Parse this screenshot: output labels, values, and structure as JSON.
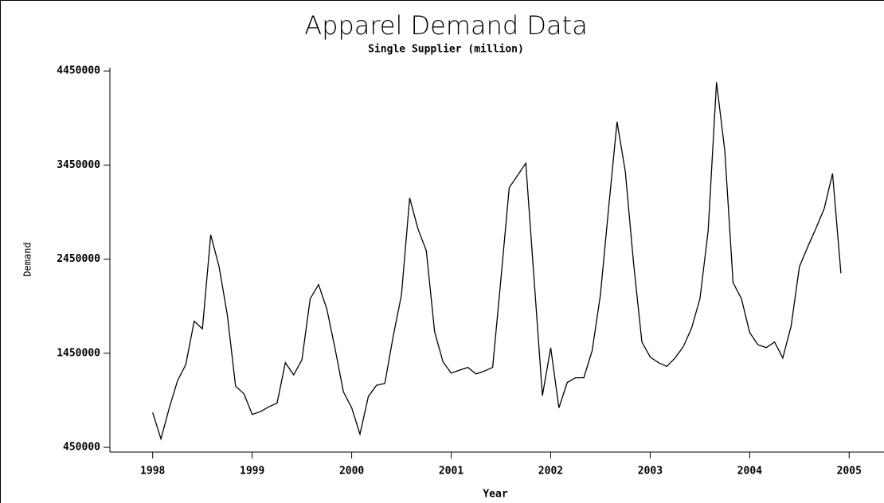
{
  "chart_data": {
    "type": "line",
    "title": "Apparel Demand Data",
    "subtitle": "Single Supplier (million)",
    "xlabel": "Year",
    "ylabel": "Demand",
    "x": [
      1998.0,
      1998.083,
      1998.167,
      1998.25,
      1998.333,
      1998.417,
      1998.5,
      1998.583,
      1998.667,
      1998.75,
      1998.833,
      1998.917,
      1999.0,
      1999.083,
      1999.167,
      1999.25,
      1999.333,
      1999.417,
      1999.5,
      1999.583,
      1999.667,
      1999.75,
      1999.833,
      1999.917,
      2000.0,
      2000.083,
      2000.167,
      2000.25,
      2000.333,
      2000.417,
      2000.5,
      2000.583,
      2000.667,
      2000.75,
      2000.833,
      2000.917,
      2001.0,
      2001.083,
      2001.167,
      2001.25,
      2001.333,
      2001.417,
      2001.5,
      2001.583,
      2001.667,
      2001.75,
      2001.833,
      2001.917,
      2002.0,
      2002.083,
      2002.167,
      2002.25,
      2002.333,
      2002.417,
      2002.5,
      2002.583,
      2002.667,
      2002.75,
      2002.833,
      2002.917,
      2003.0,
      2003.083,
      2003.167,
      2003.25,
      2003.333,
      2003.417,
      2003.5,
      2003.583,
      2003.667,
      2003.75,
      2003.833,
      2003.917,
      2004.0,
      2004.083,
      2004.167,
      2004.25,
      2004.333,
      2004.417,
      2004.5,
      2004.583,
      2004.667,
      2004.75,
      2004.833,
      2004.917
    ],
    "values": [
      820000,
      540000,
      870000,
      1160000,
      1330000,
      1790000,
      1710000,
      2710000,
      2370000,
      1860000,
      1100000,
      1020000,
      800000,
      830000,
      880000,
      920000,
      1350000,
      1220000,
      1380000,
      2030000,
      2180000,
      1920000,
      1500000,
      1040000,
      870000,
      590000,
      990000,
      1110000,
      1130000,
      1630000,
      2070000,
      3100000,
      2770000,
      2540000,
      1680000,
      1360000,
      1240000,
      1270000,
      1300000,
      1230000,
      1260000,
      1300000,
      2240000,
      3210000,
      3340000,
      3470000,
      2240000,
      1000000,
      1510000,
      870000,
      1140000,
      1190000,
      1190000,
      1480000,
      2070000,
      3000000,
      3910000,
      3380000,
      2410000,
      1570000,
      1410000,
      1350000,
      1310000,
      1400000,
      1520000,
      1720000,
      2030000,
      2750000,
      4330000,
      3600000,
      2200000,
      2030000,
      1670000,
      1540000,
      1510000,
      1570000,
      1400000,
      1740000,
      2370000,
      2580000,
      2780000,
      2990000,
      3360000,
      2300000
    ],
    "color": "#000000",
    "xlim": [
      1997.57,
      2005.35
    ],
    "xticks": [
      1998,
      1999,
      2000,
      2001,
      2002,
      2003,
      2004,
      2005
    ],
    "ylim": [
      400000,
      4485000
    ],
    "yticks": [
      450000,
      1450000,
      2450000,
      3450000,
      4450000
    ]
  }
}
